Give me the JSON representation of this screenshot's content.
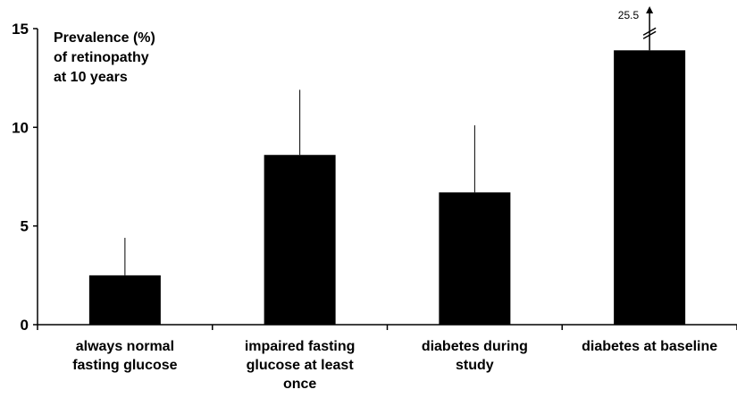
{
  "chart_data": {
    "type": "bar",
    "title_lines": [
      "Prevalence (%)",
      "of retinopathy",
      "at 10 years"
    ],
    "categories": [
      [
        "always normal",
        "fasting glucose"
      ],
      [
        "impaired fasting",
        "glucose at least",
        "once"
      ],
      [
        "diabetes during",
        "study"
      ],
      [
        "diabetes at baseline"
      ]
    ],
    "values": [
      2.5,
      8.6,
      6.7,
      13.9
    ],
    "error_upper": [
      4.4,
      11.9,
      10.1,
      15.0
    ],
    "ylim": [
      0,
      15
    ],
    "yticks": [
      0,
      5,
      10,
      15
    ],
    "ytick_labels": [
      "0",
      "5",
      "10",
      "15"
    ],
    "annotation": {
      "text": "25.5",
      "category_index": 3
    },
    "grid": false,
    "colors": {
      "bar": "#000000",
      "axis": "#000000"
    }
  }
}
